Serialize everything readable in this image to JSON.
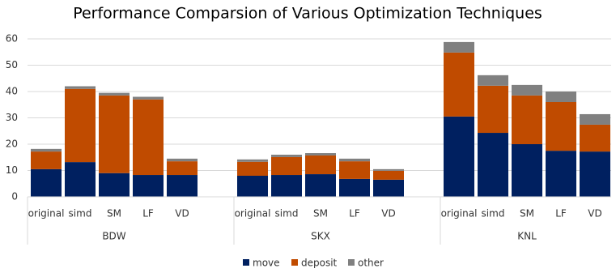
{
  "chart_data": {
    "type": "stacked_bar",
    "title": "Performance Comparsion of Various Optimization Techniques",
    "groups": [
      {
        "label": "BDW",
        "categories": [
          "original",
          "simd",
          "SM",
          "LF",
          "VD"
        ]
      },
      {
        "label": "SKX",
        "categories": [
          "original",
          "simd",
          "SM",
          "LF",
          "VD"
        ]
      },
      {
        "label": "KNL",
        "categories": [
          "original",
          "simd",
          "SM",
          "LF",
          "VD"
        ]
      }
    ],
    "series": [
      {
        "name": "move",
        "color": "#002060",
        "values": [
          10.5,
          13.2,
          9,
          8.3,
          8.3,
          8,
          8.3,
          8.6,
          6.8,
          6.5,
          30.5,
          24.3,
          20,
          17.5,
          17.2
        ]
      },
      {
        "name": "deposit",
        "color": "#c04b00",
        "values": [
          6.7,
          27.8,
          29.5,
          28.7,
          5.2,
          5.3,
          6.8,
          7.1,
          6.7,
          3.4,
          24.3,
          17.9,
          18.5,
          18.5,
          10.2
        ]
      },
      {
        "name": "other",
        "color": "#808080",
        "values": [
          1,
          1,
          1,
          1,
          1,
          0.9,
          0.9,
          0.9,
          1,
          0.6,
          4,
          4,
          4,
          4,
          4
        ]
      }
    ],
    "ylim": [
      0,
      60
    ],
    "yticks": [
      0,
      10,
      20,
      30,
      40,
      50,
      60
    ],
    "grid": true,
    "legend": "bottom"
  }
}
